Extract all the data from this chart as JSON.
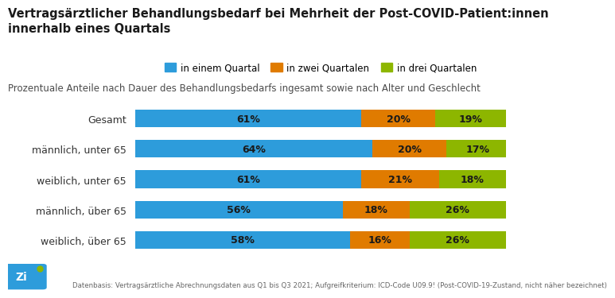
{
  "title": "Vertragsärztlicher Behandlungsbedarf bei Mehrheit der Post-COVID-Patient:innen\ninnerhalb eines Quartals",
  "subtitle": "Prozentuale Anteile nach Dauer des Behandlungsbedarfs ingesamt sowie nach Alter und Geschlecht",
  "footnote": "Datenbasis: Vertragsärztliche Abrechnungsdaten aus Q1 bis Q3 2021; Aufgreifkriterium: ICD-Code U09.9! (Post-COVID-19-Zustand, nicht näher bezeichnet)",
  "categories": [
    "Gesamt",
    "männlich, unter 65",
    "weiblich, unter 65",
    "männlich, über 65",
    "weiblich, über 65"
  ],
  "values": [
    [
      61,
      20,
      19
    ],
    [
      64,
      20,
      17
    ],
    [
      61,
      21,
      18
    ],
    [
      56,
      18,
      26
    ],
    [
      58,
      16,
      26
    ]
  ],
  "colors": [
    "#2D9CDB",
    "#E07B00",
    "#8DB600"
  ],
  "legend_labels": [
    "in einem Quartal",
    "in zwei Quartalen",
    "in drei Quartalen"
  ],
  "background_color": "#FFFFFF",
  "bar_text_color": "#1A1A1A",
  "title_color": "#1A1A1A",
  "subtitle_color": "#4A4A4A",
  "footnote_color": "#666666",
  "category_color": "#333333",
  "title_fontsize": 10.5,
  "subtitle_fontsize": 8.5,
  "bar_fontsize": 9,
  "legend_fontsize": 8.5,
  "footnote_fontsize": 6.2,
  "category_fontsize": 9,
  "bar_height": 0.58,
  "bar_gap_color": "#FFFFFF"
}
